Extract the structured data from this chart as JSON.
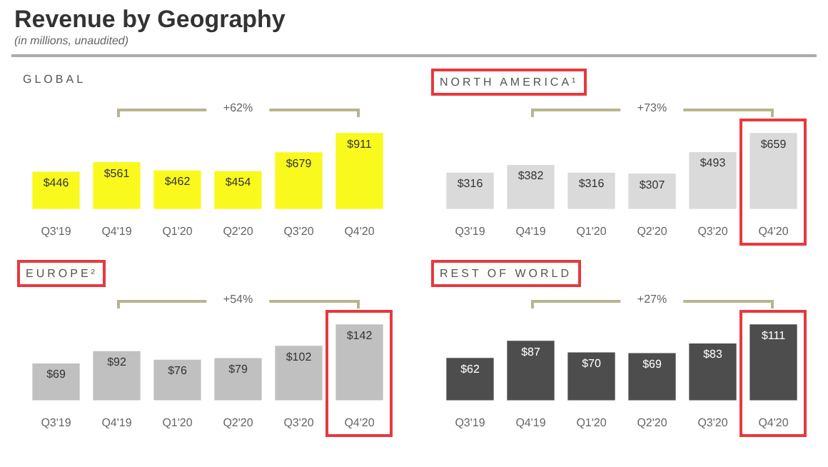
{
  "chart_data": [
    {
      "type": "bar",
      "title": "Revenue by Geography",
      "subtitle": "(in millions, unaudited)",
      "xlabel": "GLOBAL",
      "categories": [
        "Q3'19",
        "Q4'19",
        "Q1'20",
        "Q2'20",
        "Q3'20",
        "Q4'20"
      ],
      "values": [
        446,
        561,
        462,
        454,
        679,
        911
      ],
      "color": "#f9f91e",
      "value_labels": [
        "$446",
        "$561",
        "$462",
        "$454",
        "$679",
        "$911"
      ],
      "annotations": [
        "+62%"
      ]
    },
    {
      "type": "bar",
      "xlabel": "NORTH AMERICA¹",
      "categories": [
        "Q3'19",
        "Q4'19",
        "Q1'20",
        "Q2'20",
        "Q3'20",
        "Q4'20"
      ],
      "values": [
        316,
        382,
        316,
        307,
        493,
        659
      ],
      "color": "#dadada",
      "value_labels": [
        "$316",
        "$382",
        "$316",
        "$307",
        "$493",
        "$659"
      ],
      "annotations": [
        "+73%"
      ]
    },
    {
      "type": "bar",
      "xlabel": "EUROPE²",
      "categories": [
        "Q3'19",
        "Q4'19",
        "Q1'20",
        "Q2'20",
        "Q3'20",
        "Q4'20"
      ],
      "values": [
        69,
        92,
        76,
        79,
        102,
        142
      ],
      "color": "#c0c0c0",
      "value_labels": [
        "$69",
        "$92",
        "$76",
        "$79",
        "$102",
        "$142"
      ],
      "annotations": [
        "+54%"
      ]
    },
    {
      "type": "bar",
      "xlabel": "REST OF WORLD",
      "categories": [
        "Q3'19",
        "Q4'19",
        "Q1'20",
        "Q2'20",
        "Q3'20",
        "Q4'20"
      ],
      "values": [
        62,
        87,
        70,
        69,
        83,
        111
      ],
      "color": "#4d4d4d",
      "value_labels": [
        "$62",
        "$87",
        "$70",
        "$69",
        "$83",
        "$111"
      ],
      "annotations": [
        "+27%"
      ]
    }
  ]
}
